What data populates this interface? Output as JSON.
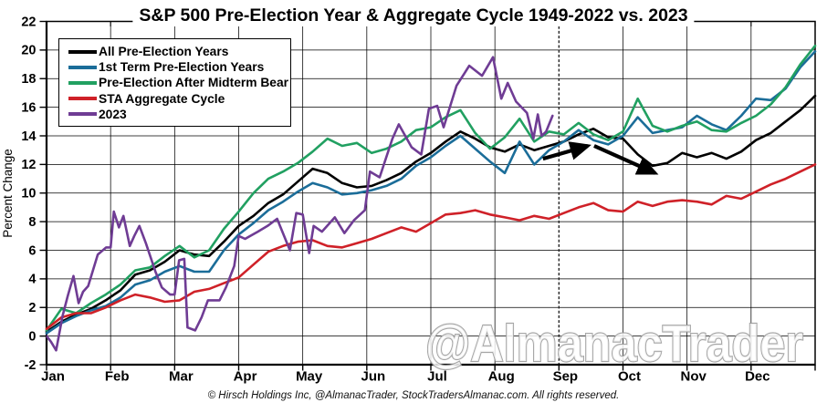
{
  "title": "S&P 500 Pre-Election Year & Aggregate Cycle 1949-2022 vs. 2023",
  "watermark": "@AlmanacTrader",
  "footer": "© Hirsch Holdings Inc, @AlmanacTrader, StockTradersAlmanac.com. All rights reserved.",
  "chart_data": {
    "type": "line",
    "title": "S&P 500 Pre-Election Year & Aggregate Cycle 1949-2022 vs. 2023",
    "xlabel": "",
    "ylabel": "Percent Change",
    "ylim": [
      -2,
      22
    ],
    "y_ticks": [
      -2,
      0,
      2,
      4,
      6,
      8,
      10,
      12,
      14,
      16,
      18,
      20,
      22
    ],
    "negative_tick_color": "#cc0000",
    "x_categories": [
      "Jan",
      "Feb",
      "Mar",
      "Apr",
      "May",
      "Jun",
      "Jul",
      "Aug",
      "Sep",
      "Oct",
      "Nov",
      "Dec"
    ],
    "grid": true,
    "legend_position": "top-left",
    "annotations": {
      "dashed_vline_at_month": 8,
      "arrows": [
        {
          "from": [
            7.75,
            12.4
          ],
          "to": [
            8.45,
            13.3
          ]
        },
        {
          "from": [
            8.55,
            13.3
          ],
          "to": [
            9.5,
            11.4
          ]
        }
      ]
    },
    "series": [
      {
        "name": "All Pre-Election Years",
        "color": "#000000",
        "x_uniform": [
          0,
          0.230769
        ],
        "y": [
          0.3,
          1.0,
          1.5,
          1.9,
          2.5,
          3.2,
          4.3,
          4.6,
          5.2,
          6.0,
          5.7,
          5.6,
          6.6,
          7.7,
          8.4,
          9.3,
          9.9,
          10.8,
          11.7,
          11.4,
          10.7,
          10.4,
          10.5,
          10.9,
          11.4,
          12.2,
          12.8,
          13.6,
          14.3,
          13.8,
          13.2,
          12.9,
          13.4,
          13.0,
          13.3,
          13.6,
          14.1,
          14.5,
          13.9,
          13.8,
          12.7,
          11.9,
          12.1,
          12.8,
          12.5,
          12.8,
          12.4,
          12.9,
          13.7,
          14.2,
          15.0,
          15.8,
          16.8
        ]
      },
      {
        "name": "1st Term Pre-Election Years",
        "color": "#1b6d99",
        "x_uniform": [
          0,
          0.230769
        ],
        "y": [
          0.2,
          0.9,
          1.4,
          1.8,
          2.1,
          2.7,
          3.6,
          3.9,
          4.5,
          4.9,
          4.5,
          4.5,
          6.0,
          7.1,
          7.9,
          8.8,
          9.4,
          10.1,
          10.7,
          10.4,
          9.9,
          10.0,
          10.2,
          10.5,
          11.0,
          11.9,
          12.5,
          13.3,
          14.0,
          13.1,
          12.2,
          11.4,
          13.6,
          12.0,
          13.0,
          13.6,
          14.4,
          13.7,
          13.4,
          14.0,
          15.3,
          14.2,
          14.4,
          14.6,
          15.4,
          14.8,
          14.4,
          15.4,
          16.6,
          16.5,
          17.3,
          18.8,
          19.9
        ]
      },
      {
        "name": "Pre-Election After Midterm Bear",
        "color": "#21a061",
        "x_uniform": [
          0,
          0.230769
        ],
        "y": [
          0.4,
          1.9,
          1.6,
          2.3,
          2.9,
          3.6,
          4.6,
          4.8,
          5.6,
          6.3,
          5.5,
          6.0,
          7.5,
          8.7,
          10.0,
          11.0,
          11.5,
          12.1,
          12.9,
          13.8,
          13.3,
          13.5,
          12.8,
          13.1,
          13.6,
          14.4,
          14.6,
          15.3,
          15.8,
          14.2,
          13.1,
          13.9,
          15.2,
          13.6,
          14.3,
          14.1,
          14.9,
          14.1,
          13.7,
          14.3,
          16.6,
          14.7,
          14.3,
          14.7,
          15.0,
          14.4,
          14.3,
          14.9,
          15.4,
          16.2,
          17.4,
          19.0,
          20.3
        ]
      },
      {
        "name": "STA Aggregate Cycle",
        "color": "#cf2128",
        "x_uniform": [
          0,
          0.230769
        ],
        "y": [
          0.5,
          1.3,
          1.6,
          1.6,
          2.0,
          2.5,
          2.9,
          2.7,
          2.4,
          2.5,
          3.1,
          3.3,
          3.7,
          4.1,
          5.0,
          5.9,
          6.3,
          6.6,
          6.7,
          6.3,
          6.2,
          6.5,
          6.8,
          7.2,
          7.6,
          7.3,
          7.9,
          8.5,
          8.6,
          8.8,
          8.5,
          8.3,
          8.1,
          8.4,
          8.2,
          8.6,
          9.0,
          9.3,
          8.8,
          8.7,
          9.4,
          9.1,
          9.4,
          9.5,
          9.4,
          9.2,
          9.8,
          9.6,
          10.1,
          10.6,
          11.0,
          11.5,
          12.0
        ]
      },
      {
        "name": "2023",
        "color": "#6f3c94",
        "x": [
          0.0,
          0.07,
          0.15,
          0.25,
          0.33,
          0.42,
          0.5,
          0.57,
          0.65,
          0.8,
          0.93,
          1.0,
          1.05,
          1.13,
          1.2,
          1.3,
          1.37,
          1.45,
          1.55,
          1.7,
          1.8,
          1.93,
          2.0,
          2.07,
          2.15,
          2.2,
          2.32,
          2.42,
          2.52,
          2.7,
          2.8,
          2.93,
          3.0,
          3.1,
          3.3,
          3.45,
          3.6,
          3.8,
          3.9,
          4.0,
          4.1,
          4.17,
          4.3,
          4.5,
          4.65,
          4.8,
          4.97,
          5.05,
          5.2,
          5.4,
          5.5,
          5.7,
          5.85,
          5.97,
          6.1,
          6.2,
          6.4,
          6.6,
          6.8,
          6.97,
          7.1,
          7.2,
          7.33,
          7.5,
          7.6,
          7.67,
          7.73,
          7.8,
          7.9
        ],
        "y": [
          0.0,
          -0.4,
          -1.0,
          1.4,
          2.8,
          4.2,
          2.3,
          3.1,
          3.5,
          5.7,
          6.2,
          6.2,
          8.7,
          7.6,
          8.4,
          6.3,
          7.0,
          7.7,
          6.5,
          4.5,
          3.4,
          2.9,
          2.9,
          5.3,
          5.4,
          0.6,
          0.4,
          1.3,
          2.5,
          2.5,
          3.4,
          4.9,
          7.0,
          6.8,
          7.3,
          7.7,
          8.2,
          6.0,
          8.6,
          8.5,
          5.8,
          7.7,
          7.3,
          8.3,
          7.2,
          8.1,
          8.8,
          11.5,
          11.1,
          13.8,
          14.8,
          13.2,
          12.7,
          15.9,
          16.1,
          14.6,
          17.5,
          18.9,
          18.2,
          19.5,
          16.6,
          17.7,
          16.4,
          15.6,
          13.8,
          15.5,
          14.0,
          14.3,
          15.4
        ]
      }
    ]
  }
}
